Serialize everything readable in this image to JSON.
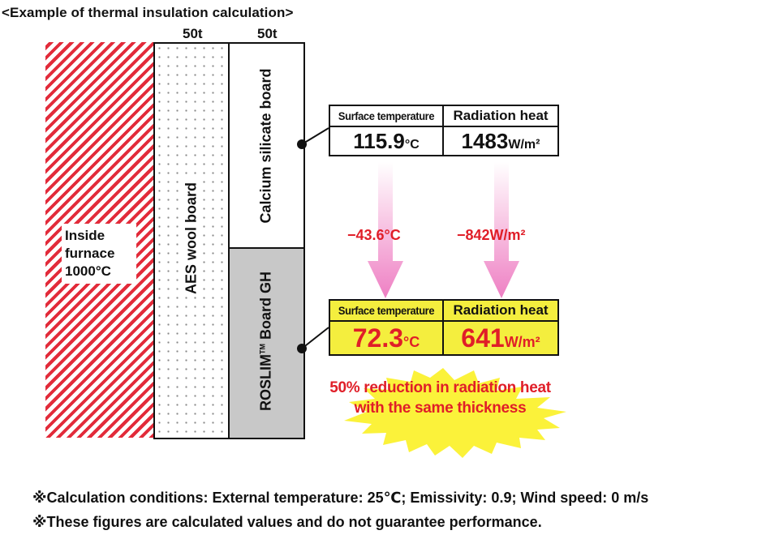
{
  "title": "<Example of thermal insulation calculation>",
  "thickness": [
    "50t",
    "50t"
  ],
  "furnace": {
    "label_line1": "Inside",
    "label_line2": "furnace",
    "label_line3": "1000°C"
  },
  "layers": {
    "wool": "AES wool board",
    "calcium": "Calcium silicate board",
    "roslim_pre": "ROSLIM",
    "roslim_tm": "TM",
    "roslim_post": " Board GH"
  },
  "result_top": {
    "header_temp": "Surface temperature",
    "header_heat": "Radiation heat",
    "temp_value": "115.9",
    "temp_unit": "°C",
    "heat_value": "1483",
    "heat_unit": "W/m²"
  },
  "deltas": {
    "temp": "−43.6°C",
    "heat": "−842W/m²"
  },
  "result_bottom": {
    "header_temp": "Surface temperature",
    "header_heat": "Radiation heat",
    "temp_value": "72.3",
    "temp_unit": "°C",
    "heat_value": "641",
    "heat_unit": "W/m²"
  },
  "burst": {
    "line1": "50% reduction in radiation heat",
    "line2": "with the same thickness"
  },
  "notes": [
    "※Calculation conditions: External temperature: 25℃; Emissivity: 0.9; Wind speed: 0 m/s",
    "※These figures are calculated values and do not guarantee performance."
  ],
  "colors": {
    "accent_red": "#e01e28",
    "highlight_yellow": "#f4ee3e",
    "arrow_pink": "#f08ec8",
    "roslim_gray": "#c8c8c8"
  }
}
